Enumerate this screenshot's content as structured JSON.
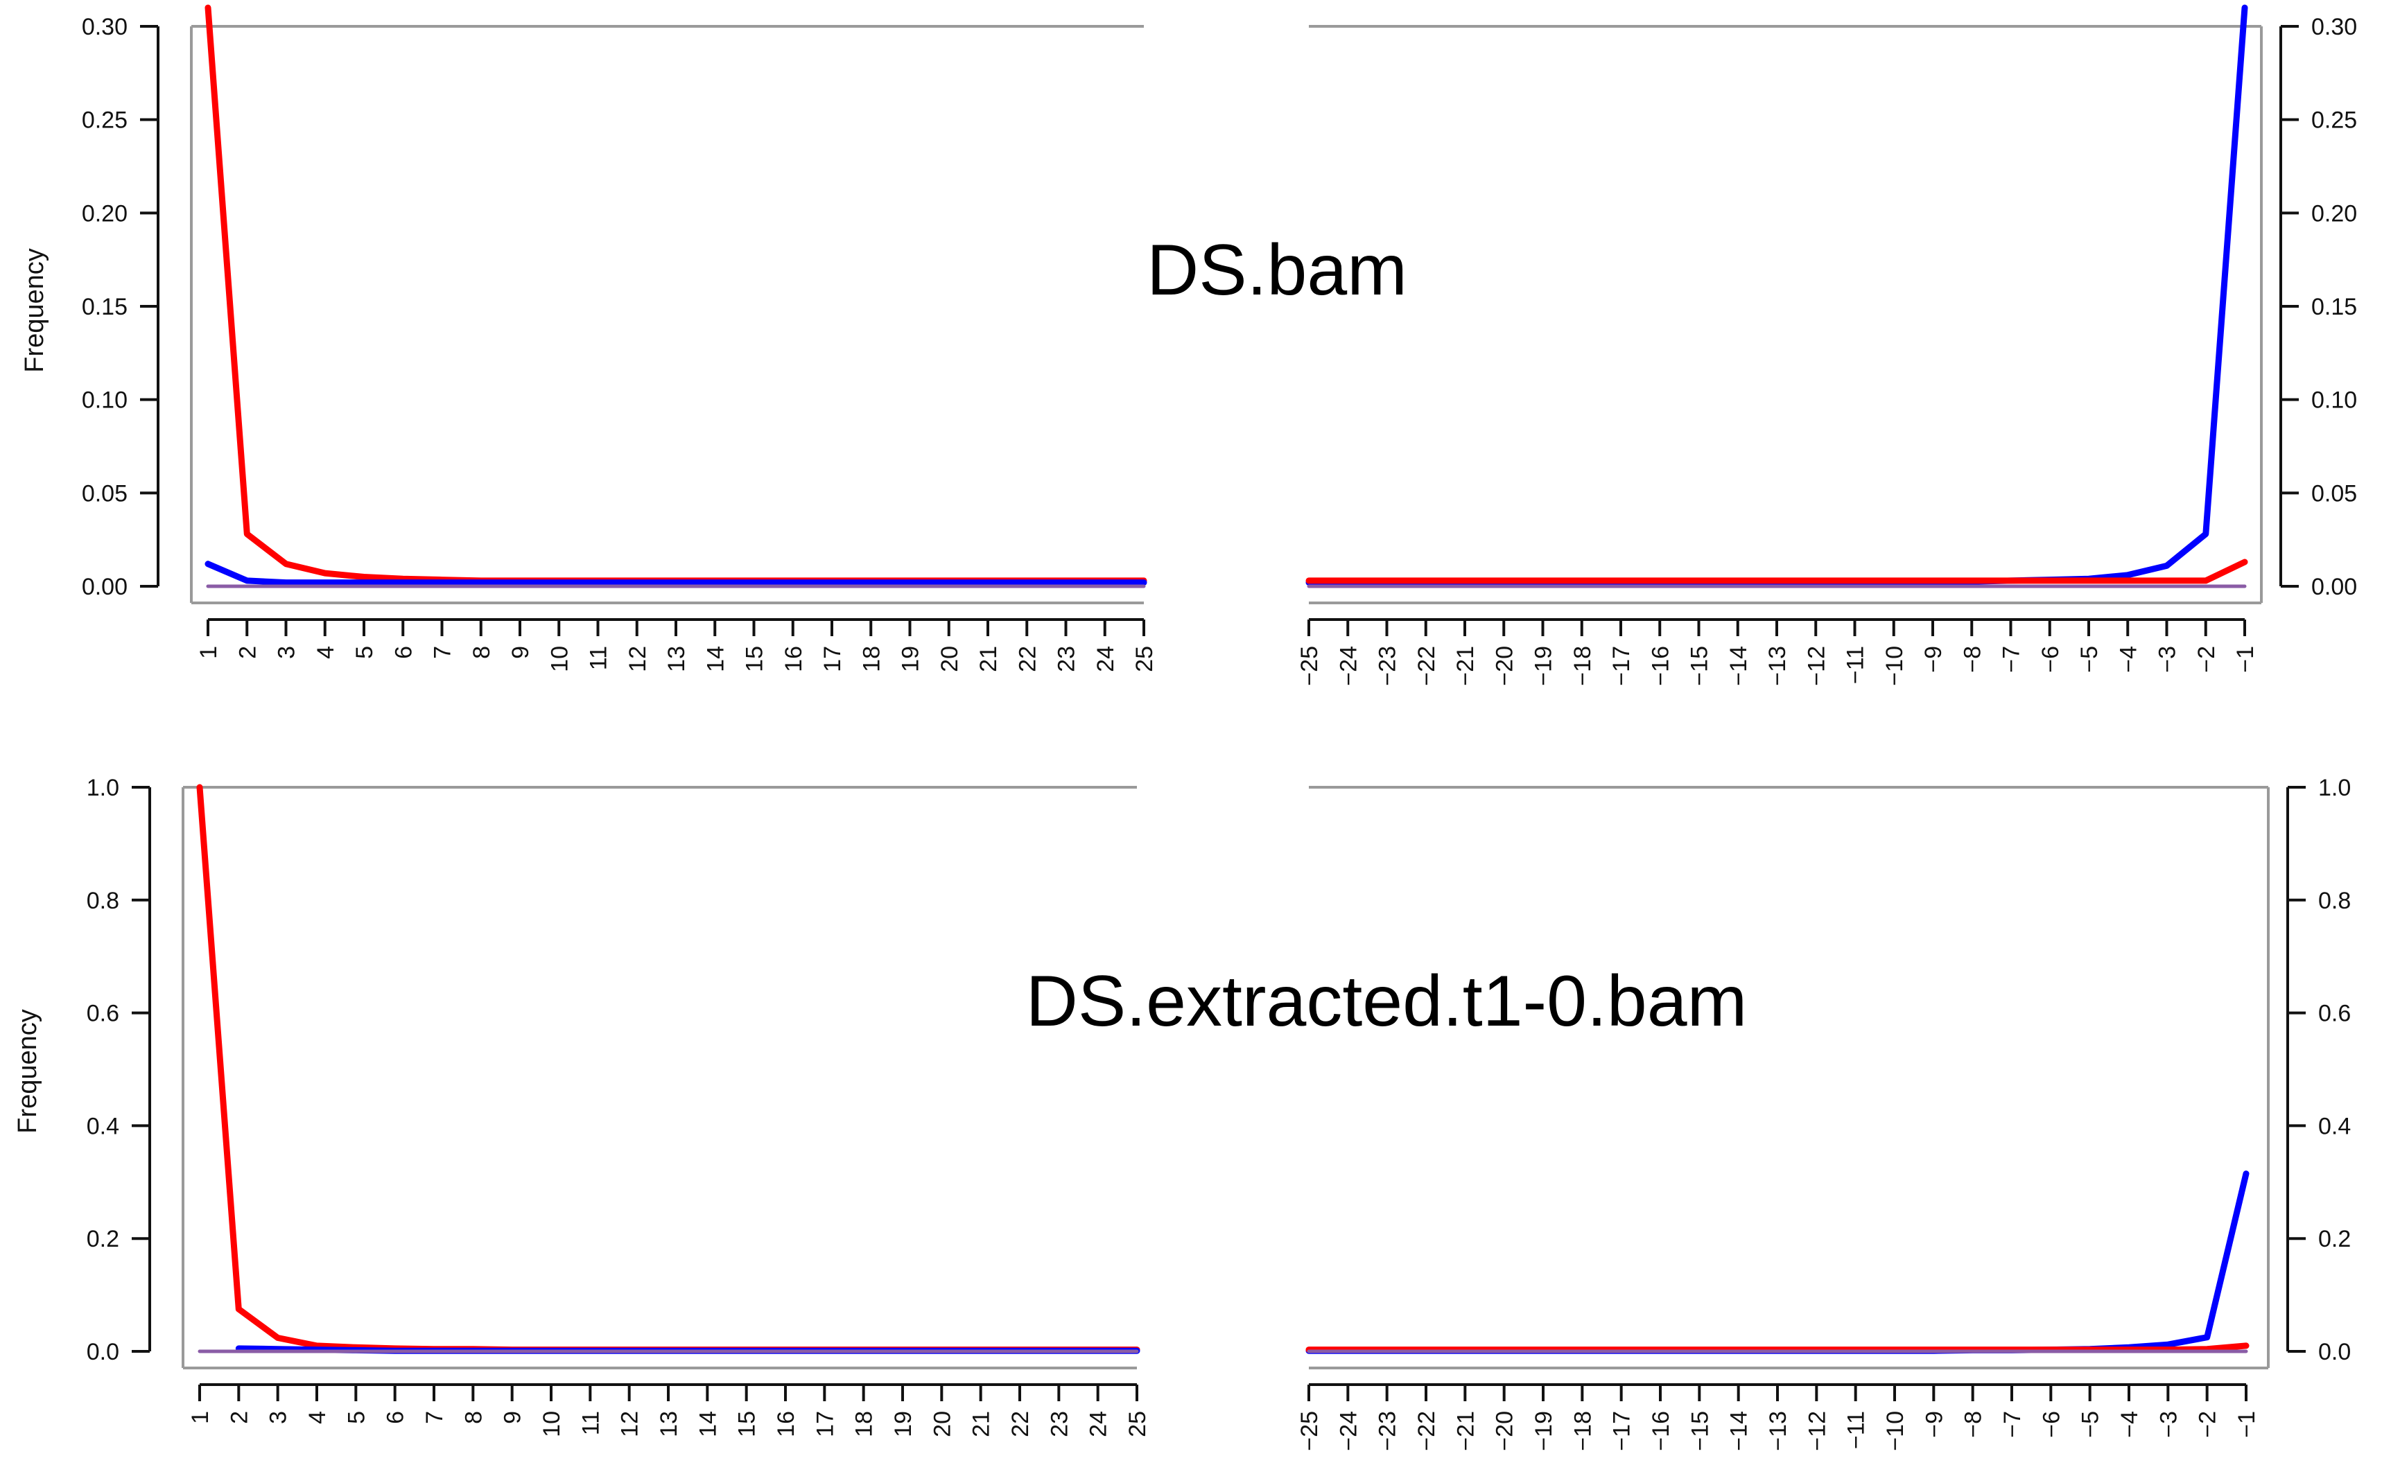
{
  "colors": {
    "red": "#ff0000",
    "blue": "#0000ff",
    "purple": "#8a5ca6",
    "frame": "#9a9a9a",
    "axis": "#111111"
  },
  "chart_data": [
    {
      "type": "line",
      "title": "DS.bam",
      "ylabel": "Frequency",
      "ylim": [
        0,
        0.3
      ],
      "yticks": [
        "0.00",
        "0.05",
        "0.10",
        "0.15",
        "0.20",
        "0.25",
        "0.30"
      ],
      "panels": [
        {
          "side": "left",
          "x": [
            1,
            2,
            3,
            4,
            5,
            6,
            7,
            8,
            9,
            10,
            11,
            12,
            13,
            14,
            15,
            16,
            17,
            18,
            19,
            20,
            21,
            22,
            23,
            24,
            25
          ],
          "series": [
            {
              "color": "red",
              "values": [
                0.31,
                0.028,
                0.012,
                0.007,
                0.005,
                0.004,
                0.0035,
                0.003,
                0.003,
                0.003,
                0.003,
                0.003,
                0.003,
                0.003,
                0.003,
                0.003,
                0.003,
                0.003,
                0.003,
                0.003,
                0.003,
                0.003,
                0.003,
                0.003,
                0.003
              ]
            },
            {
              "color": "blue",
              "values": [
                0.012,
                0.003,
                0.002,
                0.002,
                0.002,
                0.002,
                0.002,
                0.002,
                0.002,
                0.002,
                0.002,
                0.002,
                0.002,
                0.002,
                0.002,
                0.002,
                0.002,
                0.002,
                0.002,
                0.002,
                0.002,
                0.002,
                0.002,
                0.002,
                0.002
              ]
            },
            {
              "color": "purple",
              "values": [
                0,
                0,
                0,
                0,
                0,
                0,
                0,
                0,
                0,
                0,
                0,
                0,
                0,
                0,
                0,
                0,
                0,
                0,
                0,
                0,
                0,
                0,
                0,
                0,
                0
              ]
            }
          ]
        },
        {
          "side": "right",
          "x": [
            -25,
            -24,
            -23,
            -22,
            -21,
            -20,
            -19,
            -18,
            -17,
            -16,
            -15,
            -14,
            -13,
            -12,
            -11,
            -10,
            -9,
            -8,
            -7,
            -6,
            -5,
            -4,
            -3,
            -2,
            -1
          ],
          "series": [
            {
              "color": "blue",
              "values": [
                0.002,
                0.002,
                0.002,
                0.002,
                0.002,
                0.002,
                0.002,
                0.002,
                0.002,
                0.002,
                0.002,
                0.002,
                0.002,
                0.002,
                0.002,
                0.002,
                0.002,
                0.0025,
                0.003,
                0.0035,
                0.004,
                0.006,
                0.011,
                0.028,
                0.31
              ]
            },
            {
              "color": "red",
              "values": [
                0.003,
                0.003,
                0.003,
                0.003,
                0.003,
                0.003,
                0.003,
                0.003,
                0.003,
                0.003,
                0.003,
                0.003,
                0.003,
                0.003,
                0.003,
                0.003,
                0.003,
                0.003,
                0.003,
                0.003,
                0.003,
                0.003,
                0.003,
                0.003,
                0.013
              ]
            },
            {
              "color": "purple",
              "values": [
                0,
                0,
                0,
                0,
                0,
                0,
                0,
                0,
                0,
                0,
                0,
                0,
                0,
                0,
                0,
                0,
                0,
                0,
                0,
                0,
                0,
                0,
                0,
                0,
                0
              ]
            }
          ]
        }
      ]
    },
    {
      "type": "line",
      "title": "DS.extracted.t1-0.bam",
      "ylabel": "Frequency",
      "ylim": [
        0,
        1.0
      ],
      "yticks": [
        "0.0",
        "0.2",
        "0.4",
        "0.6",
        "0.8",
        "1.0"
      ],
      "panels": [
        {
          "side": "left",
          "x": [
            1,
            2,
            3,
            4,
            5,
            6,
            7,
            8,
            9,
            10,
            11,
            12,
            13,
            14,
            15,
            16,
            17,
            18,
            19,
            20,
            21,
            22,
            23,
            24,
            25
          ],
          "series": [
            {
              "color": "red",
              "values": [
                1.0,
                0.075,
                0.024,
                0.01,
                0.007,
                0.005,
                0.004,
                0.004,
                0.003,
                0.003,
                0.003,
                0.003,
                0.003,
                0.003,
                0.003,
                0.003,
                0.003,
                0.003,
                0.003,
                0.003,
                0.003,
                0.003,
                0.003,
                0.003,
                0.003
              ]
            },
            {
              "color": "blue",
              "values": [
                null,
                0.005,
                0.004,
                0.003,
                0.002,
                0.001,
                0.001,
                0.001,
                0.001,
                0.001,
                0.001,
                0.001,
                0.001,
                0.001,
                0.001,
                0.001,
                0.001,
                0.001,
                0.001,
                0.001,
                0.001,
                0.001,
                0.001,
                0.001,
                0.001
              ]
            },
            {
              "color": "purple",
              "values": [
                0,
                0,
                0,
                0,
                0,
                0,
                0,
                0,
                0,
                0,
                0,
                0,
                0,
                0,
                0,
                0,
                0,
                0,
                0,
                0,
                0,
                0,
                0,
                0,
                0
              ]
            }
          ]
        },
        {
          "side": "right",
          "x": [
            -25,
            -24,
            -23,
            -22,
            -21,
            -20,
            -19,
            -18,
            -17,
            -16,
            -15,
            -14,
            -13,
            -12,
            -11,
            -10,
            -9,
            -8,
            -7,
            -6,
            -5,
            -4,
            -3,
            -2,
            -1
          ],
          "series": [
            {
              "color": "blue",
              "values": [
                0.001,
                0.001,
                0.001,
                0.001,
                0.001,
                0.001,
                0.001,
                0.001,
                0.001,
                0.001,
                0.001,
                0.001,
                0.001,
                0.001,
                0.001,
                0.001,
                0.001,
                0.002,
                0.002,
                0.003,
                0.004,
                0.007,
                0.012,
                0.025,
                0.315
              ]
            },
            {
              "color": "red",
              "values": [
                0.003,
                0.003,
                0.003,
                0.003,
                0.003,
                0.003,
                0.003,
                0.003,
                0.003,
                0.003,
                0.003,
                0.003,
                0.003,
                0.003,
                0.003,
                0.003,
                0.003,
                0.003,
                0.003,
                0.003,
                0.003,
                0.003,
                0.003,
                0.004,
                0.01
              ]
            },
            {
              "color": "purple",
              "values": [
                0,
                0,
                0,
                0,
                0,
                0,
                0,
                0,
                0,
                0,
                0,
                0,
                0,
                0,
                0,
                0,
                0,
                0,
                0,
                0,
                0,
                0,
                0,
                0,
                0
              ]
            }
          ]
        }
      ]
    }
  ]
}
